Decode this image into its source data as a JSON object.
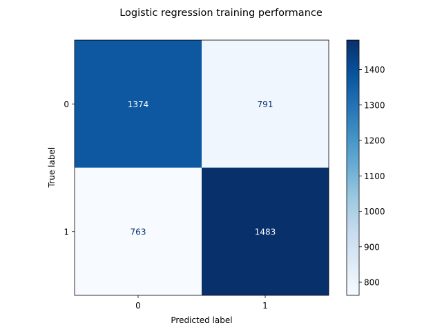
{
  "chart_data": {
    "type": "heatmap",
    "title": "Logistic regression training performance",
    "xlabel": "Predicted label",
    "ylabel": "True label",
    "x_categories": [
      "0",
      "1"
    ],
    "y_categories": [
      "0",
      "1"
    ],
    "matrix": [
      [
        1374,
        791
      ],
      [
        763,
        1483
      ]
    ],
    "colormap": "Blues",
    "vmin": 763,
    "vmax": 1483,
    "colorbar_ticks": [
      800,
      900,
      1000,
      1100,
      1200,
      1300,
      1400
    ],
    "grid": false,
    "colors": {
      "min": "#f7fbff",
      "max": "#08306b",
      "dark_text": "#08306b",
      "light_text": "#f7fbff"
    }
  }
}
